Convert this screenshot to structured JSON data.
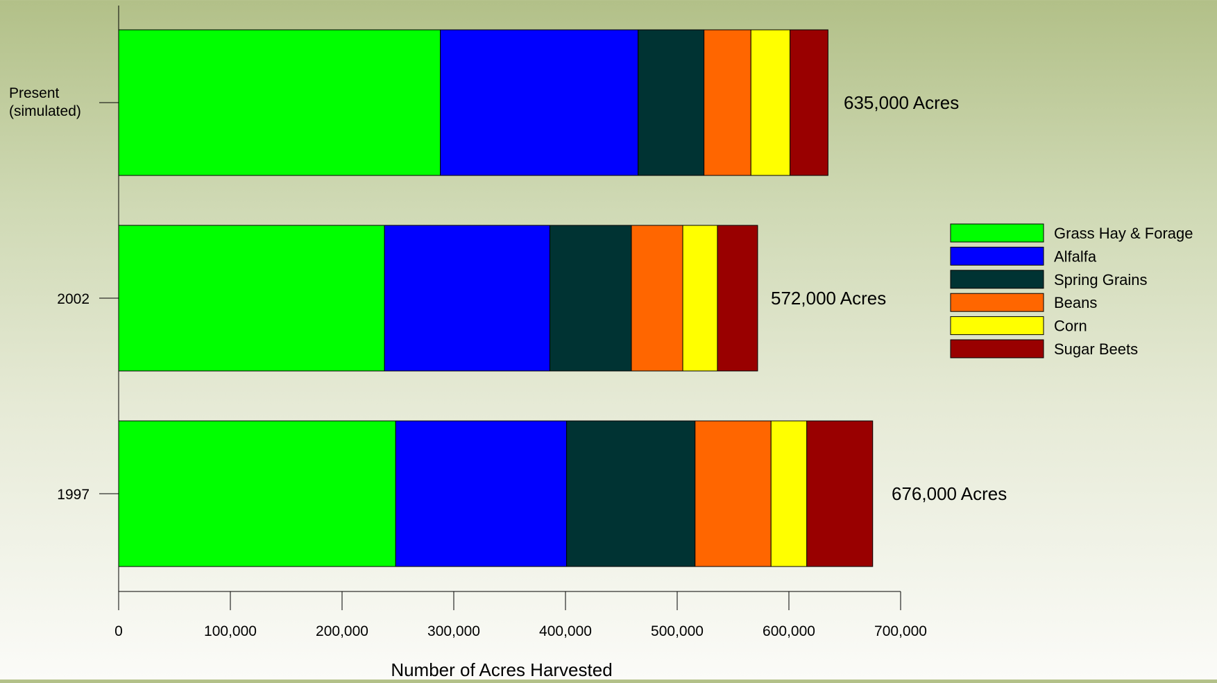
{
  "chart_data": {
    "type": "bar",
    "orientation": "horizontal",
    "stacked": true,
    "categories": [
      "Present\n(simulated)",
      "2002",
      "1997"
    ],
    "series": [
      {
        "name": "Grass Hay & Forage",
        "color": "#00ff00",
        "values": [
          288000,
          238000,
          248000
        ]
      },
      {
        "name": "Alfalfa",
        "color": "#0000ff",
        "values": [
          177000,
          148000,
          153000
        ]
      },
      {
        "name": "Spring Grains",
        "color": "#003333",
        "values": [
          59000,
          73000,
          115000
        ]
      },
      {
        "name": "Beans",
        "color": "#ff6600",
        "values": [
          42000,
          46000,
          68000
        ]
      },
      {
        "name": "Corn",
        "color": "#ffff00",
        "values": [
          35000,
          31000,
          32000
        ]
      },
      {
        "name": "Sugar Beets",
        "color": "#990000",
        "values": [
          34000,
          36000,
          59000
        ]
      }
    ],
    "totals_labels": [
      "635,000 Acres",
      "572,000 Acres",
      "676,000 Acres"
    ],
    "xlabel": "Number of Acres Harvested",
    "ylabel": "",
    "xlim": [
      0,
      700000
    ],
    "xticks": [
      0,
      100000,
      200000,
      300000,
      400000,
      500000,
      600000,
      700000
    ],
    "xtick_labels": [
      "0",
      "100,000",
      "200,000",
      "300,000",
      "400,000",
      "500,000",
      "600,000",
      "700,000"
    ],
    "legend_position": "right",
    "grid": false
  }
}
